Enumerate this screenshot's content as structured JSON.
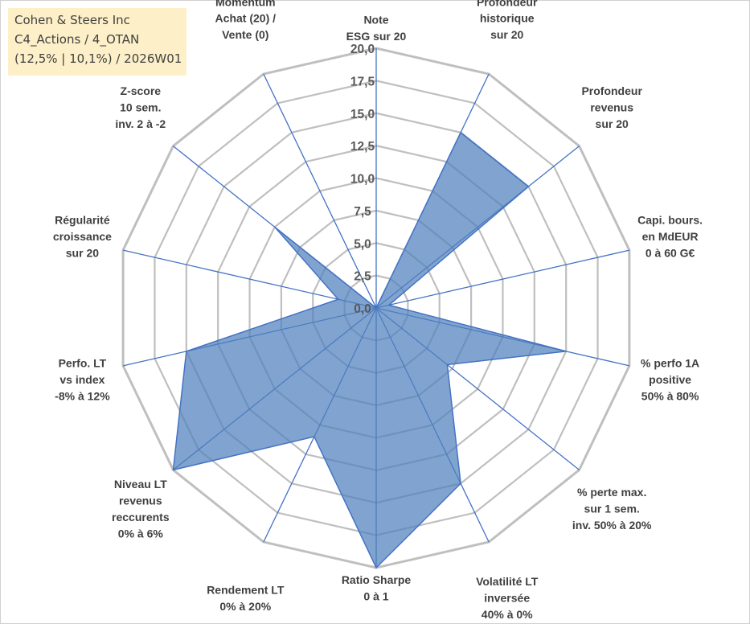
{
  "info": {
    "line1": "Cohen & Steers Inc",
    "line2": "C4_Actions / 4_OTAN",
    "line3": "(12,5% | 10,1%) / 2026W01"
  },
  "colors": {
    "grid": "#bfbfbf",
    "spoke": "#4472c4",
    "fill": "#4f81bd",
    "info_bg": "#fdf0c8"
  },
  "chart_data": {
    "type": "radar",
    "title": "",
    "rmin": 0,
    "rmax": 20,
    "tick_step": 2.5,
    "ticks": [
      "0,0",
      "2,5",
      "5,0",
      "7,5",
      "10,0",
      "12,5",
      "15,0",
      "17,5",
      "20,0"
    ],
    "axes": [
      {
        "label": [
          "Note",
          "ESG sur 20"
        ],
        "value": 0
      },
      {
        "label": [
          "Profondeur",
          "historique",
          "sur 20"
        ],
        "value": 15
      },
      {
        "label": [
          "Profondeur",
          "revenus",
          "sur 20"
        ],
        "value": 15
      },
      {
        "label": [
          "Capi. bours.",
          "en MdEUR",
          "0 à 60 G€"
        ],
        "value": 1
      },
      {
        "label": [
          "% perfo 1A",
          "positive",
          "50% à 80%"
        ],
        "value": 15
      },
      {
        "label": [
          "% perte max.",
          "sur 1 sem.",
          "inv. 50% à 20%"
        ],
        "value": 7
      },
      {
        "label": [
          "Volatilité LT",
          "inversée",
          "40% à 0%"
        ],
        "value": 15
      },
      {
        "label": [
          "Ratio Sharpe",
          "0 à 1"
        ],
        "value": 20
      },
      {
        "label": [
          "Rendement LT",
          "0% à 20%"
        ],
        "value": 11
      },
      {
        "label": [
          "Niveau LT",
          "revenus",
          "reccurents",
          "0% à 6%"
        ],
        "value": 20
      },
      {
        "label": [
          "Perfo. LT",
          "vs index",
          "-8% à 12%"
        ],
        "value": 15
      },
      {
        "label": [
          "Régularité",
          "croissance",
          "sur 20"
        ],
        "value": 3
      },
      {
        "label": [
          "Z-score",
          "10 sem.",
          "inv. 2 à -2"
        ],
        "value": 10
      },
      {
        "label": [
          "Momentum",
          "Achat (20) /",
          "Vente (0)"
        ],
        "value": 0
      }
    ]
  }
}
